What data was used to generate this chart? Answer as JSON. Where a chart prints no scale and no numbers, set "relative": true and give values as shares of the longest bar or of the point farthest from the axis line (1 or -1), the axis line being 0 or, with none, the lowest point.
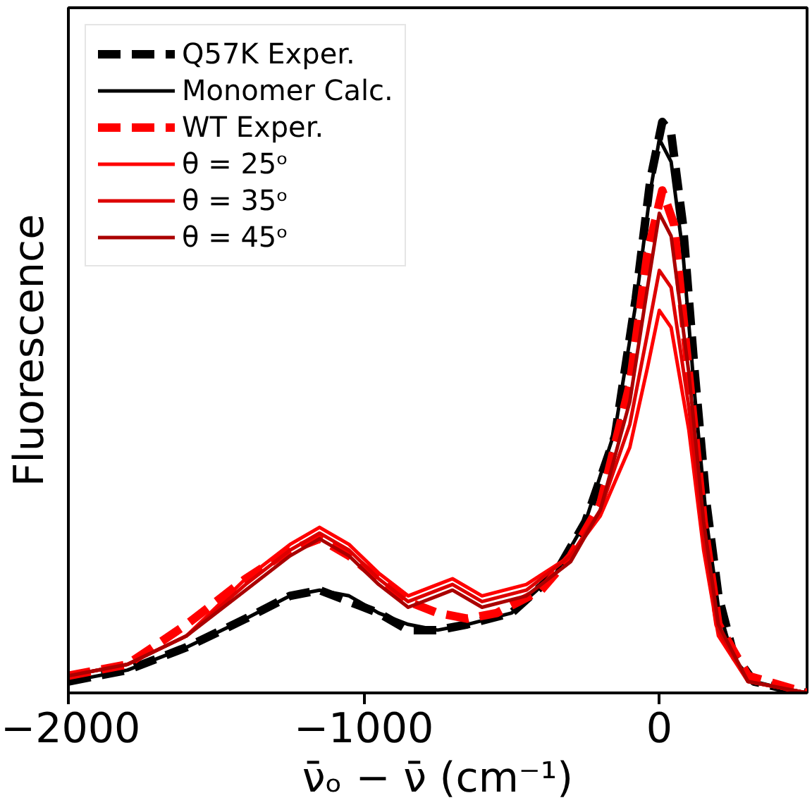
{
  "chart_data": {
    "type": "line",
    "relative": true,
    "xlabel": "ν̄ₒ − ν̄ (cm⁻¹)",
    "ylabel": "Fluorescence",
    "xlim": [
      -2000,
      500
    ],
    "xticks": [
      {
        "value": -2000,
        "label": "−2000"
      },
      {
        "value": -1000,
        "label": "−1000"
      },
      0
    ],
    "legend": "top left",
    "grid": false,
    "tick_labels": "x",
    "series": [
      {
        "name": "Q57K Exper.",
        "color": "#000000",
        "line_style": "dashed",
        "x": [
          -2000,
          -1800,
          -1600,
          -1400,
          -1250,
          -1150,
          -1050,
          -950,
          -850,
          -750,
          -650,
          -500,
          -350,
          -250,
          -150,
          -80,
          -30,
          10,
          40,
          80,
          120,
          160,
          200,
          250,
          320,
          400,
          500
        ],
        "values": [
          0.02,
          0.04,
          0.08,
          0.13,
          0.17,
          0.18,
          0.16,
          0.14,
          0.11,
          0.11,
          0.12,
          0.14,
          0.21,
          0.3,
          0.45,
          0.69,
          0.9,
          1,
          0.98,
          0.82,
          0.56,
          0.33,
          0.17,
          0.07,
          0.02,
          0.01,
          0.0
        ]
      },
      {
        "name": "Monomer Calc.",
        "color": "#000000",
        "line_style": "solid",
        "x": [
          -2000,
          -1800,
          -1600,
          -1400,
          -1250,
          -1150,
          -1050,
          -950,
          -850,
          -750,
          -650,
          -500,
          -350,
          -250,
          -150,
          -80,
          -30,
          0,
          40,
          80,
          120,
          160,
          200,
          250,
          320,
          400,
          500
        ],
        "values": [
          0.02,
          0.04,
          0.08,
          0.13,
          0.17,
          0.18,
          0.17,
          0.14,
          0.12,
          0.11,
          0.12,
          0.14,
          0.21,
          0.3,
          0.46,
          0.68,
          0.88,
          0.97,
          0.93,
          0.77,
          0.52,
          0.3,
          0.15,
          0.06,
          0.02,
          0.01,
          0.0
        ]
      },
      {
        "name": "WT Exper.",
        "color": "#ff0000",
        "line_style": "dashed",
        "x": [
          -2000,
          -1800,
          -1600,
          -1400,
          -1250,
          -1150,
          -1050,
          -950,
          -850,
          -750,
          -650,
          -550,
          -400,
          -300,
          -200,
          -100,
          -40,
          10,
          50,
          100,
          150,
          200,
          300,
          500
        ],
        "values": [
          0.03,
          0.05,
          0.12,
          0.2,
          0.25,
          0.27,
          0.24,
          0.2,
          0.16,
          0.14,
          0.13,
          0.14,
          0.18,
          0.24,
          0.33,
          0.54,
          0.77,
          0.88,
          0.82,
          0.56,
          0.3,
          0.12,
          0.03,
          0.0
        ]
      },
      {
        "name": "θ = 25ᵒ",
        "color": "#ff0000",
        "line_style": "solid",
        "x": [
          -2000,
          -1800,
          -1600,
          -1400,
          -1250,
          -1150,
          -1050,
          -950,
          -850,
          -750,
          -700,
          -600,
          -450,
          -300,
          -200,
          -100,
          -40,
          0,
          40,
          100,
          150,
          200,
          300,
          500
        ],
        "values": [
          0.03,
          0.05,
          0.1,
          0.2,
          0.26,
          0.29,
          0.26,
          0.21,
          0.17,
          0.19,
          0.2,
          0.17,
          0.19,
          0.24,
          0.31,
          0.43,
          0.57,
          0.67,
          0.64,
          0.46,
          0.25,
          0.1,
          0.02,
          0.0
        ]
      },
      {
        "name": "θ = 35ᵒ",
        "color": "#dd0000",
        "line_style": "solid",
        "x": [
          -2000,
          -1800,
          -1600,
          -1400,
          -1250,
          -1150,
          -1050,
          -950,
          -850,
          -750,
          -700,
          -600,
          -450,
          -300,
          -200,
          -100,
          -40,
          0,
          40,
          100,
          150,
          200,
          300,
          500
        ],
        "values": [
          0.03,
          0.05,
          0.1,
          0.19,
          0.25,
          0.28,
          0.25,
          0.2,
          0.16,
          0.18,
          0.19,
          0.16,
          0.18,
          0.24,
          0.32,
          0.47,
          0.63,
          0.74,
          0.71,
          0.5,
          0.27,
          0.11,
          0.02,
          0.0
        ]
      },
      {
        "name": "θ = 45ᵒ",
        "color": "#aa0000",
        "line_style": "solid",
        "x": [
          -2000,
          -1800,
          -1600,
          -1400,
          -1250,
          -1150,
          -1050,
          -950,
          -850,
          -750,
          -700,
          -600,
          -450,
          -300,
          -200,
          -100,
          -40,
          0,
          40,
          100,
          150,
          200,
          300,
          500
        ],
        "values": [
          0.03,
          0.05,
          0.1,
          0.18,
          0.24,
          0.27,
          0.24,
          0.19,
          0.15,
          0.17,
          0.18,
          0.15,
          0.17,
          0.23,
          0.32,
          0.51,
          0.71,
          0.84,
          0.8,
          0.56,
          0.3,
          0.12,
          0.02,
          0.0
        ]
      }
    ]
  }
}
